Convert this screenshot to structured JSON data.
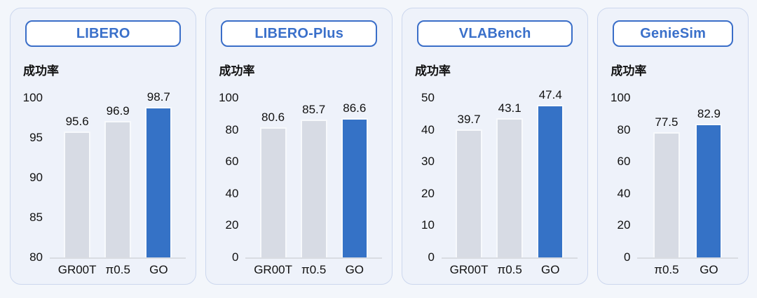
{
  "figure": {
    "background": "#f3f6fb",
    "card_background": "#eef2fa",
    "card_border_color": "#ccd7ee",
    "title_color": "#3a70ca",
    "title_border_color": "#3a6ec8",
    "bar_color_default": "#d7dbe4",
    "bar_color_highlight": "#3572c6",
    "axis_line_color": "#d9dce2",
    "text_color": "#111111"
  },
  "chart_data": [
    {
      "type": "bar",
      "title": "LIBERO",
      "ylabel": "成功率",
      "categories": [
        "GR00T",
        "π0.5",
        "GO"
      ],
      "values": [
        95.6,
        96.9,
        98.7
      ],
      "value_labels": [
        "95.6",
        "96.9",
        "98.7"
      ],
      "ylim": [
        80,
        100
      ],
      "yticks": [
        80,
        85,
        90,
        95,
        100
      ],
      "highlight_category": "GO",
      "grid": false,
      "legend": "none"
    },
    {
      "type": "bar",
      "title": "LIBERO-Plus",
      "ylabel": "成功率",
      "categories": [
        "GR00T",
        "π0.5",
        "GO"
      ],
      "values": [
        80.6,
        85.7,
        86.6
      ],
      "value_labels": [
        "80.6",
        "85.7",
        "86.6"
      ],
      "ylim": [
        0,
        100
      ],
      "yticks": [
        0,
        20,
        40,
        60,
        80,
        100
      ],
      "highlight_category": "GO",
      "grid": false,
      "legend": "none"
    },
    {
      "type": "bar",
      "title": "VLABench",
      "ylabel": "成功率",
      "categories": [
        "GR00T",
        "π0.5",
        "GO"
      ],
      "values": [
        39.7,
        43.1,
        47.4
      ],
      "value_labels": [
        "39.7",
        "43.1",
        "47.4"
      ],
      "ylim": [
        0,
        50
      ],
      "yticks": [
        0,
        10,
        20,
        30,
        40,
        50
      ],
      "highlight_category": "GO",
      "grid": false,
      "legend": "none"
    },
    {
      "type": "bar",
      "title": "GenieSim",
      "ylabel": "成功率",
      "categories": [
        "π0.5",
        "GO"
      ],
      "values": [
        77.5,
        82.9
      ],
      "value_labels": [
        "77.5",
        "82.9"
      ],
      "ylim": [
        0,
        100
      ],
      "yticks": [
        0,
        20,
        40,
        60,
        80,
        100
      ],
      "highlight_category": "GO",
      "grid": false,
      "legend": "none"
    }
  ]
}
